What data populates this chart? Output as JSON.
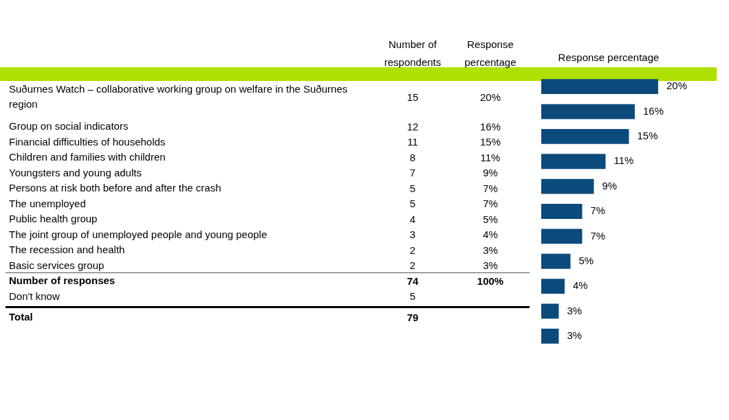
{
  "chart_data": [
    {
      "type": "other",
      "data_labels": true,
      "categories": [
        "Suðurnes Watch – collaborative working group on welfare in the Suðurnes region",
        "Group on social indicators",
        "Financial difficulties of households",
        "Children and families with children",
        "Youngsters and young adults",
        "Persons at risk both before and after the crash",
        "The unemployed",
        "Public health group",
        "The joint group of unemployed people and young people",
        "The recession and health",
        "Basic services group",
        "Number of responses",
        "Don't know",
        "Total"
      ],
      "series": [
        {
          "name": "Number of respondents",
          "values": [
            15,
            12,
            11,
            8,
            7,
            5,
            5,
            4,
            3,
            2,
            2,
            74,
            5,
            79
          ]
        },
        {
          "name": "Response percentage",
          "values": [
            20,
            16,
            15,
            11,
            9,
            7,
            7,
            5,
            4,
            3,
            3,
            100,
            null,
            null
          ],
          "value_labels": [
            "20%",
            "16%",
            "15%",
            "11%",
            "9%",
            "7%",
            "7%",
            "5%",
            "4%",
            "3%",
            "3%",
            "100%",
            null,
            null
          ]
        }
      ]
    },
    {
      "type": "bar",
      "orientation": "horizontal",
      "title": "Response percentage",
      "categories": [
        null,
        null,
        null,
        null,
        null,
        null,
        null,
        null,
        null,
        null,
        null
      ],
      "values": [
        20,
        16,
        15,
        11,
        9,
        7,
        7,
        5,
        4,
        3,
        3
      ],
      "color": "#0d4a7c",
      "tick_labels": false,
      "value_labels": [
        "20%",
        "16%",
        "15%",
        "11%",
        "9%",
        "7%",
        "7%",
        "5%",
        "4%",
        "3%",
        "3%"
      ]
    }
  ]
}
